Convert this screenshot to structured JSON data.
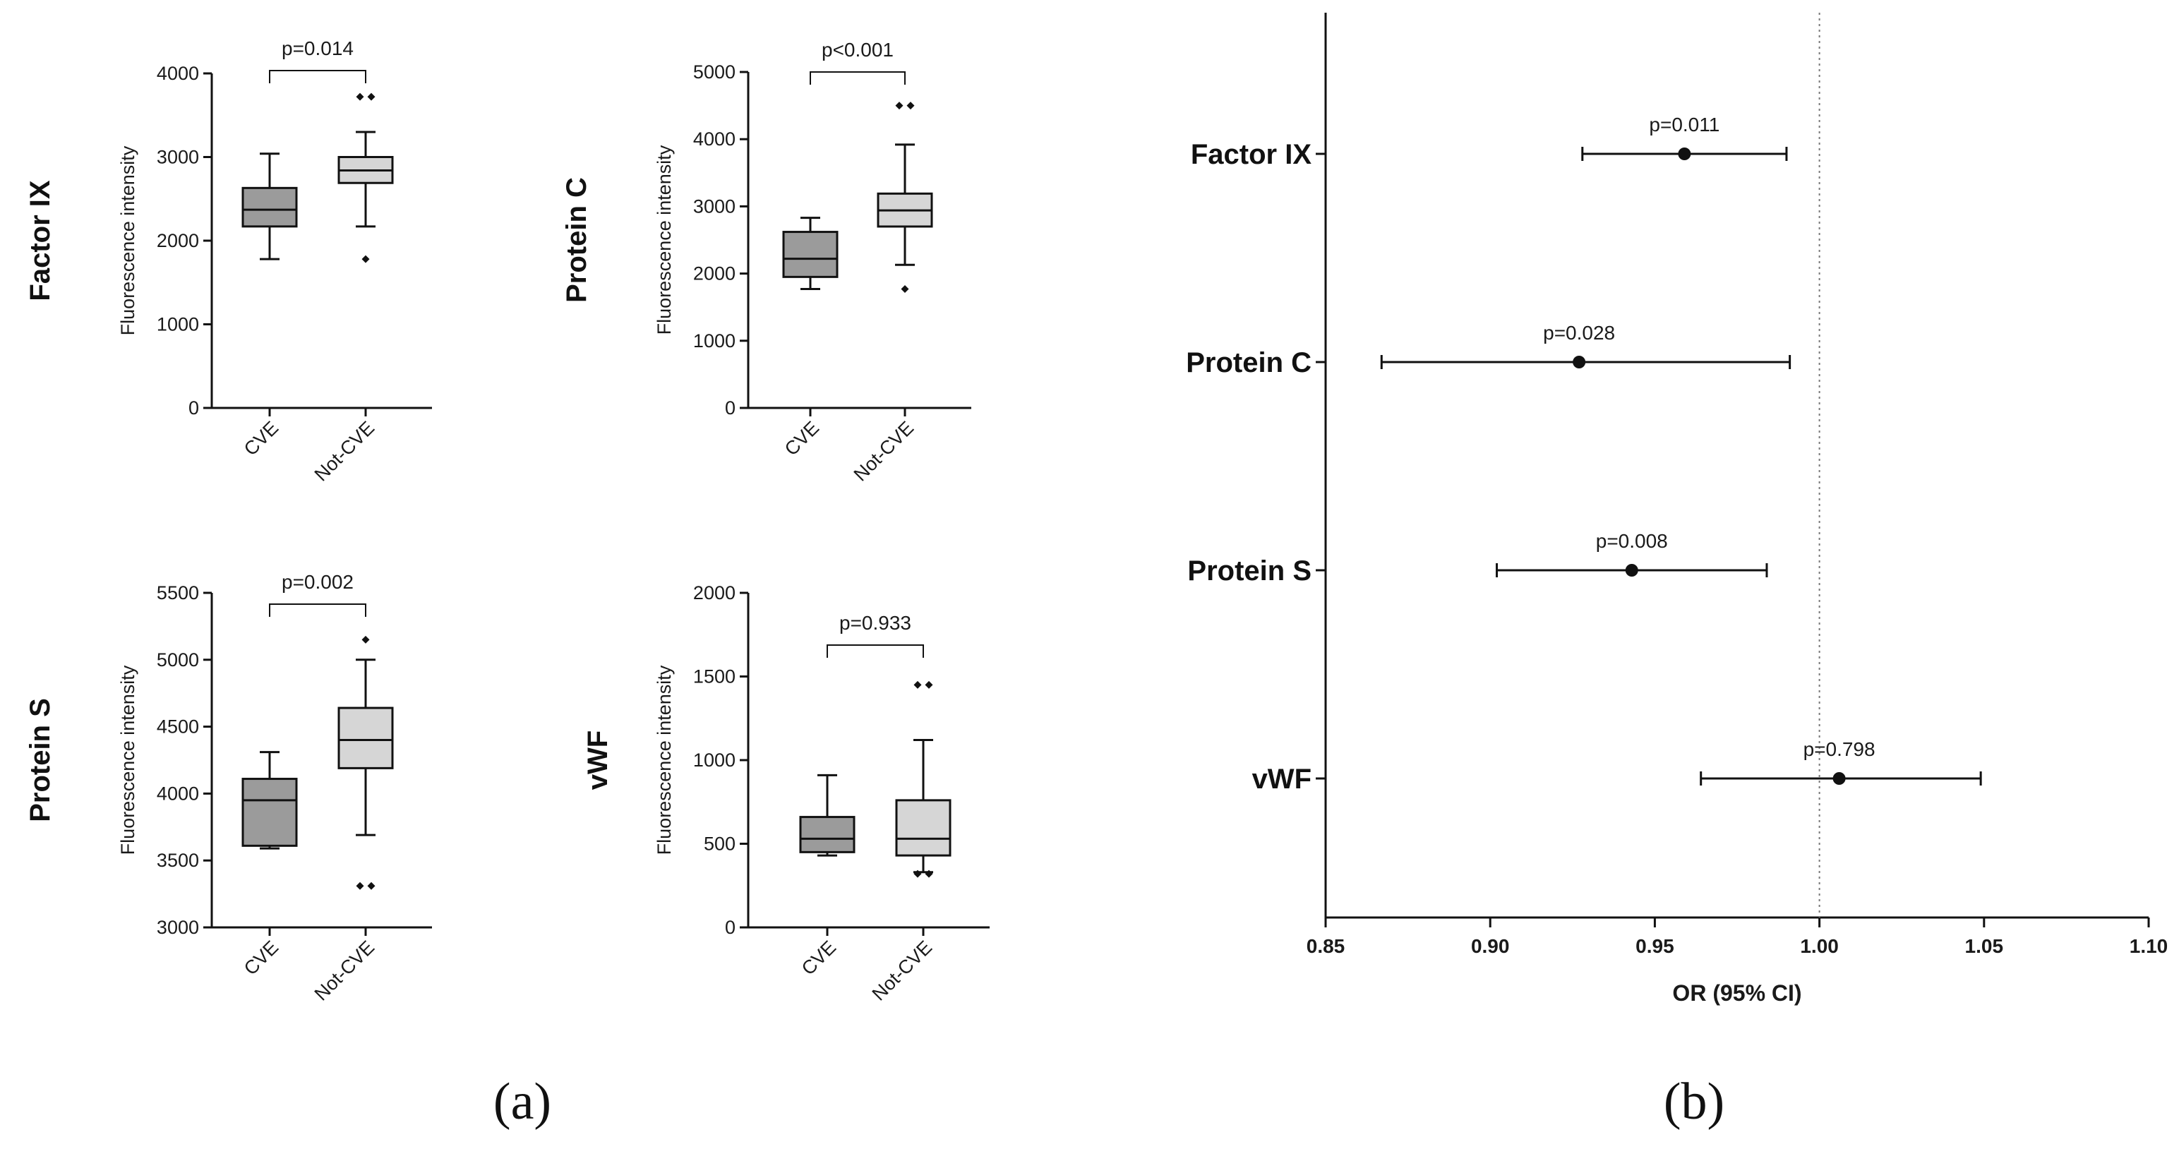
{
  "chart_data": [
    {
      "type": "box",
      "title": "Factor IX",
      "ylabel": "Fluorescence intensity",
      "ylim": [
        0,
        4000
      ],
      "yticks": [
        0,
        1000,
        2000,
        3000,
        4000
      ],
      "categories": [
        "CVE",
        "Not-CVE"
      ],
      "boxes": [
        {
          "min": 1780,
          "q1": 2170,
          "median": 2370,
          "q3": 2630,
          "max": 3040,
          "outliers": []
        },
        {
          "min": 2170,
          "q1": 2690,
          "median": 2840,
          "q3": 3000,
          "max": 3300,
          "outliers": [
            1780,
            3720,
            3720
          ]
        }
      ],
      "comparison": "p=0.014"
    },
    {
      "type": "box",
      "title": "Protein C",
      "ylabel": "Fluorescence intensity",
      "ylim": [
        0,
        5000
      ],
      "yticks": [
        0,
        1000,
        2000,
        3000,
        4000,
        5000
      ],
      "categories": [
        "CVE",
        "Not-CVE"
      ],
      "boxes": [
        {
          "min": 1770,
          "q1": 1950,
          "median": 2220,
          "q3": 2620,
          "max": 2830,
          "outliers": []
        },
        {
          "min": 2130,
          "q1": 2700,
          "median": 2940,
          "q3": 3190,
          "max": 3920,
          "outliers": [
            1770,
            4500,
            4500
          ]
        }
      ],
      "comparison": "p<0.001"
    },
    {
      "type": "box",
      "title": "Protein S",
      "ylabel": "Fluorescence intensity",
      "ylim": [
        3000,
        5500
      ],
      "yticks": [
        3000,
        3500,
        4000,
        4500,
        5000,
        5500
      ],
      "categories": [
        "CVE",
        "Not-CVE"
      ],
      "boxes": [
        {
          "min": 3590,
          "q1": 3610,
          "median": 3950,
          "q3": 4110,
          "max": 4310,
          "outliers": []
        },
        {
          "min": 3690,
          "q1": 4190,
          "median": 4400,
          "q3": 4640,
          "max": 5000,
          "outliers": [
            3310,
            3310,
            5150
          ]
        }
      ],
      "comparison": "p=0.002"
    },
    {
      "type": "box",
      "title": "vWF",
      "ylabel": "Fluorescence intensity",
      "ylim": [
        0,
        2000
      ],
      "yticks": [
        0,
        500,
        1000,
        1500,
        2000
      ],
      "categories": [
        "CVE",
        "Not-CVE"
      ],
      "boxes": [
        {
          "min": 430,
          "q1": 450,
          "median": 530,
          "q3": 660,
          "max": 910,
          "outliers": []
        },
        {
          "min": 330,
          "q1": 430,
          "median": 530,
          "q3": 760,
          "max": 1120,
          "outliers": [
            320,
            320,
            1450,
            1450
          ]
        }
      ],
      "comparison": "p=0.933"
    },
    {
      "type": "forest",
      "xlabel": "OR (95% CI)",
      "xlim": [
        0.85,
        1.1
      ],
      "xticks": [
        "0.85",
        "0.90",
        "0.95",
        "1.00",
        "1.05",
        "1.10"
      ],
      "reference": 1.0,
      "rows": [
        {
          "label": "Factor IX",
          "or": 0.959,
          "lo": 0.928,
          "hi": 0.99,
          "p": "p=0.011"
        },
        {
          "label": "Protein C",
          "or": 0.927,
          "lo": 0.867,
          "hi": 0.991,
          "p": "p=0.028"
        },
        {
          "label": "Protein S",
          "or": 0.943,
          "lo": 0.902,
          "hi": 0.984,
          "p": "p=0.008"
        },
        {
          "label": "vWF",
          "or": 1.006,
          "lo": 0.964,
          "hi": 1.049,
          "p": "p=0.798"
        }
      ]
    }
  ],
  "panel_labels": {
    "a": "(a)",
    "b": "(b)"
  },
  "colors": {
    "cve_box": "#9b9b9b",
    "notcve_box": "#d6d6d6",
    "ink": "#111111",
    "ref_line": "#777777"
  }
}
